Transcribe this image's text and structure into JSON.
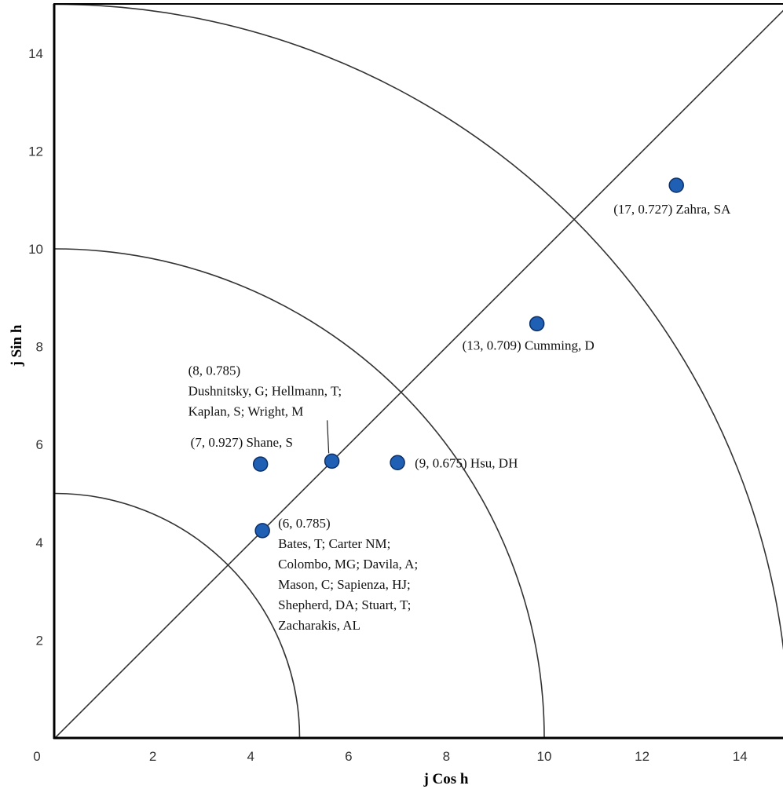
{
  "chart_data": {
    "type": "scatter",
    "xlabel": "j Cos h",
    "ylabel": "j Sin h",
    "xlim": [
      0,
      15
    ],
    "ylim": [
      0,
      15
    ],
    "x_ticks": [
      "0",
      "2",
      "4",
      "6",
      "8",
      "10",
      "12",
      "14"
    ],
    "y_ticks": [
      "2",
      "4",
      "6",
      "8",
      "10",
      "12",
      "14"
    ],
    "grid": false,
    "circle_radii": [
      5,
      10,
      15
    ],
    "diagonal_angle": 0.785,
    "marker_color": "#1f5fb4",
    "marker_edge_color": "#0d2f66",
    "points": [
      {
        "j": 17,
        "h": 0.727,
        "x": 12.7,
        "y": 11.3,
        "label": [
          "(17, 0.727) Zahra, SA"
        ]
      },
      {
        "j": 13,
        "h": 0.709,
        "x": 9.85,
        "y": 8.47,
        "label": [
          "(13, 0.709) Cumming, D"
        ]
      },
      {
        "j": 9,
        "h": 0.675,
        "x": 7.0,
        "y": 5.63,
        "label": [
          "(9, 0.675) Hsu, DH"
        ]
      },
      {
        "j": 8,
        "h": 0.785,
        "x": 5.66,
        "y": 5.66,
        "label": [
          "(8, 0.785)",
          "Dushnitsky, G; Hellmann, T;",
          " Kaplan, S; Wright, M"
        ]
      },
      {
        "j": 7,
        "h": 0.927,
        "x": 4.2,
        "y": 5.6,
        "label": [
          "(7, 0.927) Shane, S"
        ]
      },
      {
        "j": 6,
        "h": 0.785,
        "x": 4.24,
        "y": 4.24,
        "label": [
          "(6, 0.785)",
          "Bates, T; Carter NM;",
          "Colombo, MG; Davila, A;",
          "Mason, C; Sapienza, HJ;",
          "Shepherd, DA; Stuart, T;",
          "Zacharakis, AL"
        ]
      }
    ]
  }
}
